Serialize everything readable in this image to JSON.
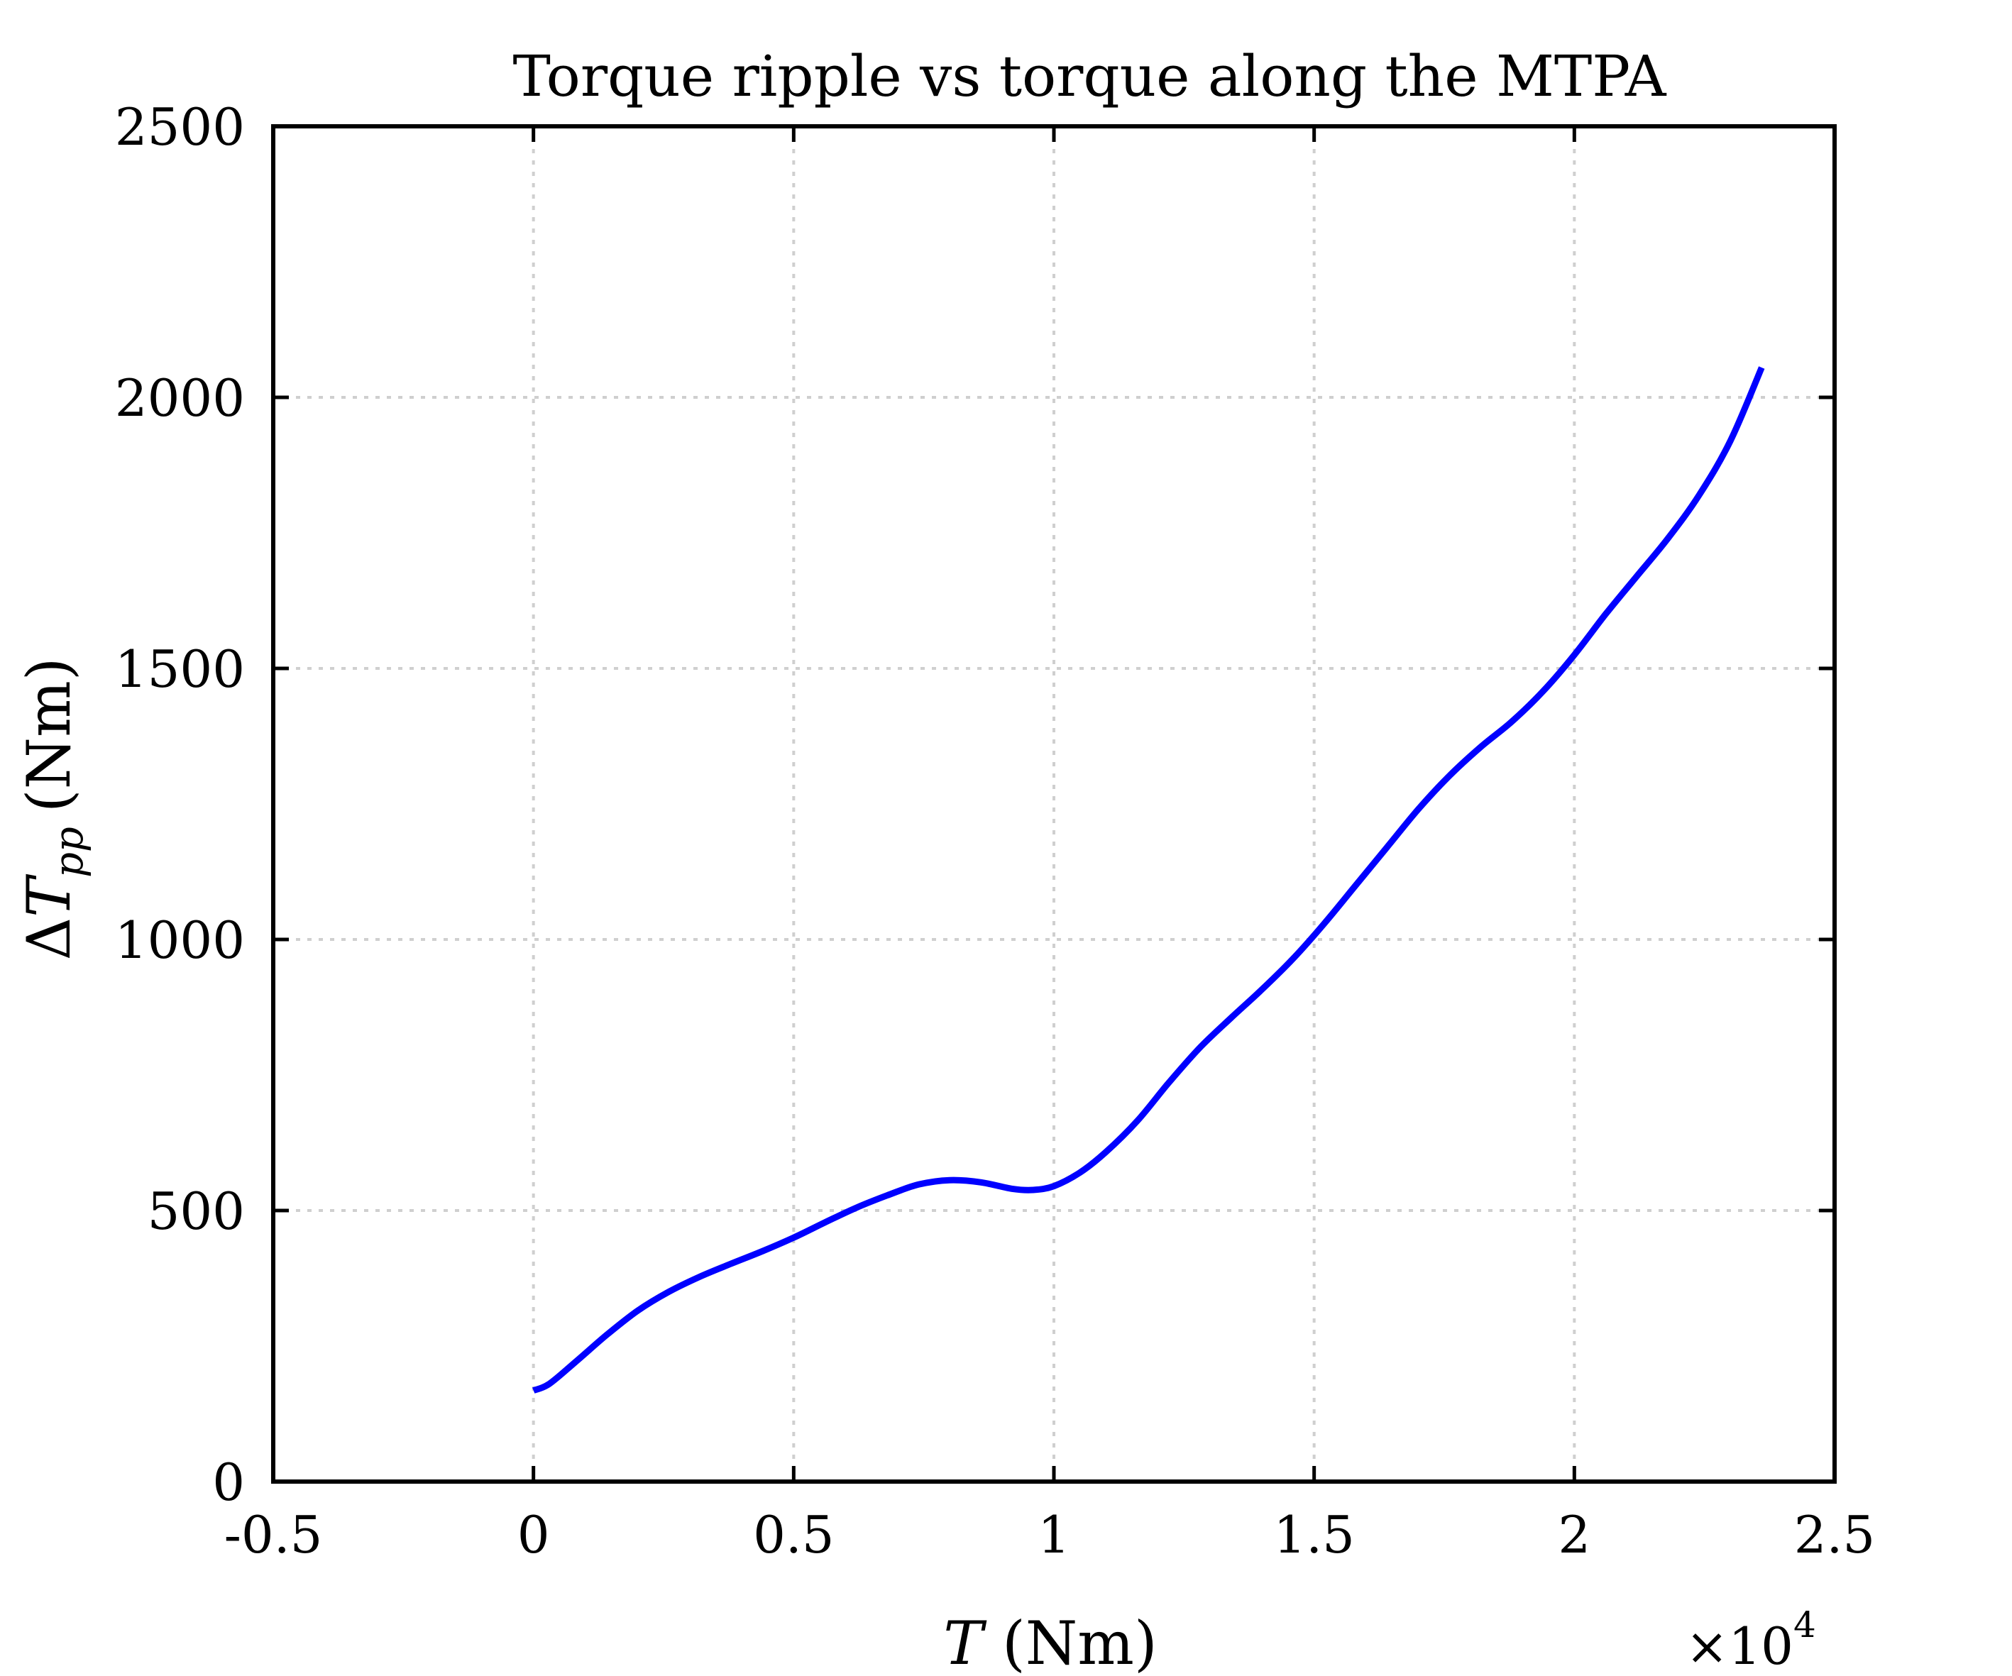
{
  "chart_data": {
    "type": "line",
    "title": "Torque ripple vs torque along the MTPA",
    "xlabel": {
      "symbol": "T",
      "unit": "(Nm)"
    },
    "ylabel": {
      "prefix": "Δ",
      "symbol": "T",
      "subscript": "pp",
      "unit": "(Nm)"
    },
    "x_multiplier_label": {
      "base": "×10",
      "exponent": "4"
    },
    "xlim": [
      -0.5,
      2.5
    ],
    "ylim": [
      0,
      2500
    ],
    "xticks": [
      -0.5,
      0,
      0.5,
      1,
      1.5,
      2,
      2.5
    ],
    "xtick_labels": [
      "-0.5",
      "0",
      "0.5",
      "1",
      "1.5",
      "2",
      "2.5"
    ],
    "yticks": [
      0,
      500,
      1000,
      1500,
      2000,
      2500
    ],
    "ytick_labels": [
      "0",
      "500",
      "1000",
      "1500",
      "2000",
      "2500"
    ],
    "grid": true,
    "series": [
      {
        "color": "#0000ff",
        "x": [
          0.0,
          0.03,
          0.08,
          0.14,
          0.2,
          0.26,
          0.32,
          0.38,
          0.44,
          0.5,
          0.56,
          0.62,
          0.68,
          0.74,
          0.8,
          0.86,
          0.92,
          0.96,
          1.0,
          1.05,
          1.1,
          1.16,
          1.22,
          1.28,
          1.34,
          1.4,
          1.46,
          1.52,
          1.58,
          1.64,
          1.7,
          1.76,
          1.82,
          1.88,
          1.94,
          2.0,
          2.06,
          2.12,
          2.18,
          2.24,
          2.3,
          2.36
        ],
        "y": [
          168,
          180,
          220,
          270,
          315,
          350,
          378,
          402,
          425,
          450,
          478,
          505,
          528,
          548,
          556,
          552,
          540,
          538,
          545,
          570,
          608,
          665,
          735,
          800,
          855,
          908,
          965,
          1030,
          1100,
          1170,
          1240,
          1302,
          1355,
          1402,
          1458,
          1525,
          1600,
          1670,
          1740,
          1820,
          1920,
          2055
        ]
      }
    ]
  }
}
